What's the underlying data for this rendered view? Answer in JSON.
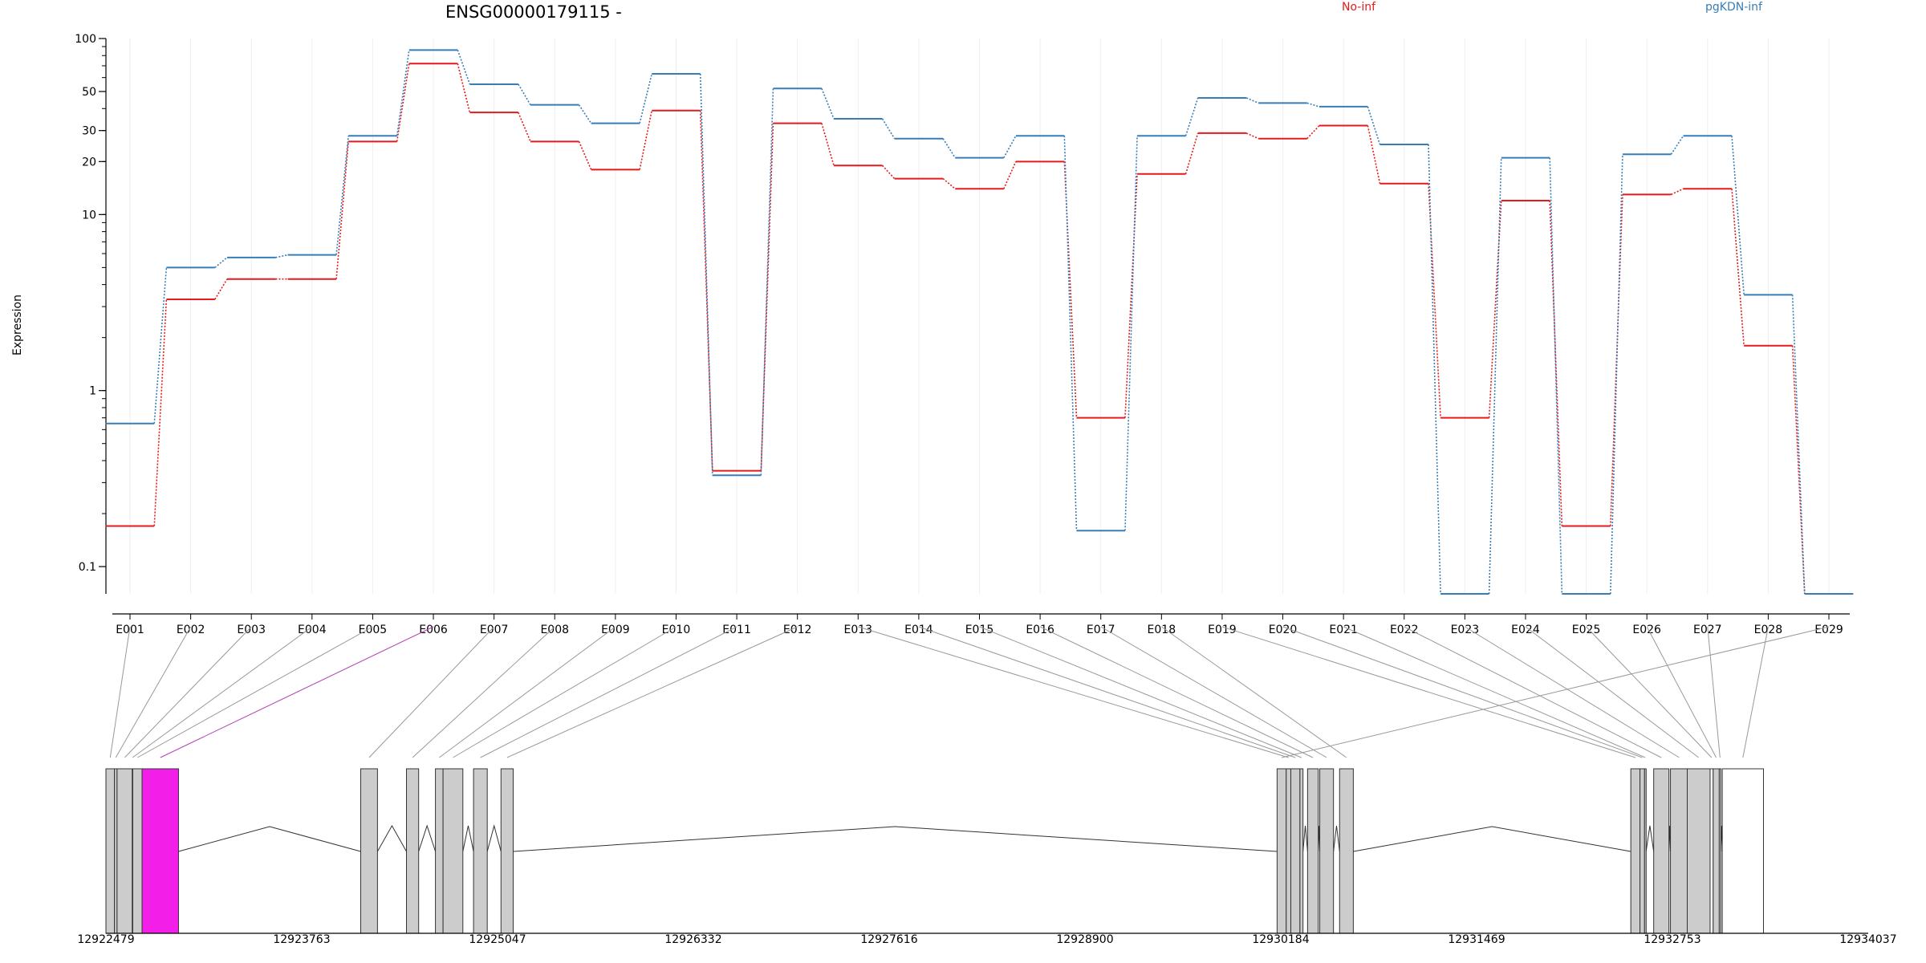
{
  "chart_data": {
    "type": "line",
    "title": "ENSG00000179115 -",
    "ylabel": "Expression",
    "yscale": "log",
    "ylim": [
      0.07,
      100
    ],
    "yticks": [
      0.1,
      1,
      10,
      20,
      30,
      50,
      100
    ],
    "ytick_labels": [
      "0.1",
      "1",
      "10",
      "20",
      "30",
      "50",
      "100"
    ],
    "legend_position": "top",
    "categories": [
      "E001",
      "E002",
      "E003",
      "E004",
      "E005",
      "E006",
      "E007",
      "E008",
      "E009",
      "E010",
      "E011",
      "E012",
      "E013",
      "E014",
      "E015",
      "E016",
      "E017",
      "E018",
      "E019",
      "E020",
      "E021",
      "E022",
      "E023",
      "E024",
      "E025",
      "E026",
      "E027",
      "E028",
      "E029"
    ],
    "series": [
      {
        "name": "No-inf",
        "color": "#e41a1c",
        "values": [
          0.17,
          3.3,
          4.3,
          4.3,
          26,
          72,
          38,
          26,
          18,
          39,
          0.35,
          33,
          19,
          16,
          14,
          20,
          0.7,
          17,
          29,
          27,
          32,
          15,
          0.7,
          12,
          0.17,
          13,
          14,
          1.8,
          0.07
        ]
      },
      {
        "name": "pgKDN-inf",
        "color": "#377eb8",
        "values": [
          0.65,
          5.0,
          5.7,
          5.9,
          28,
          86,
          55,
          42,
          33,
          63,
          0.33,
          52,
          35,
          27,
          21,
          28,
          0.16,
          28,
          46,
          43,
          41,
          25,
          0.07,
          21,
          0.07,
          22,
          28,
          3.5,
          0.07
        ]
      }
    ],
    "highlighted_exon": "E006",
    "genomic_axis": {
      "range": [
        12922479,
        12934037
      ],
      "tick_labels": [
        "12922479",
        "12923763",
        "12925047",
        "12926332",
        "12927616",
        "12928900",
        "12930184",
        "12931469",
        "12932753",
        "12934037"
      ]
    },
    "exon_coords": [
      [
        12922479,
        12922535
      ],
      [
        12922535,
        12922552
      ],
      [
        12922552,
        12922652
      ],
      [
        12922652,
        12922655
      ],
      [
        12922655,
        12922716
      ],
      [
        12922716,
        12922955
      ],
      [
        12924150,
        12924260
      ],
      [
        12924450,
        12924530
      ],
      [
        12924640,
        12924690
      ],
      [
        12924690,
        12924820
      ],
      [
        12924890,
        12924980
      ],
      [
        12925070,
        12925150
      ],
      [
        12930160,
        12930220
      ],
      [
        12930220,
        12930250
      ],
      [
        12930250,
        12930310
      ],
      [
        12930310,
        12930330
      ],
      [
        12930360,
        12930430
      ],
      [
        12930440,
        12930530
      ],
      [
        12930570,
        12930660
      ],
      [
        12932480,
        12932540
      ],
      [
        12932540,
        12932570
      ],
      [
        12932570,
        12932580
      ],
      [
        12932630,
        12932730
      ],
      [
        12932740,
        12932855
      ],
      [
        12932850,
        12933000
      ],
      [
        12933000,
        12933020
      ],
      [
        12933020,
        12933060
      ],
      [
        12933060,
        12933070
      ],
      [
        12933080,
        12933350
      ]
    ],
    "exon_plot_order": [
      0,
      1,
      2,
      3,
      4,
      5,
      6,
      7,
      8,
      9,
      10,
      11,
      13,
      14,
      15,
      16,
      17,
      18,
      19,
      20,
      21,
      22,
      23,
      24,
      25,
      26,
      27,
      28,
      12
    ],
    "exon_unfilled": [
      25,
      28
    ]
  }
}
